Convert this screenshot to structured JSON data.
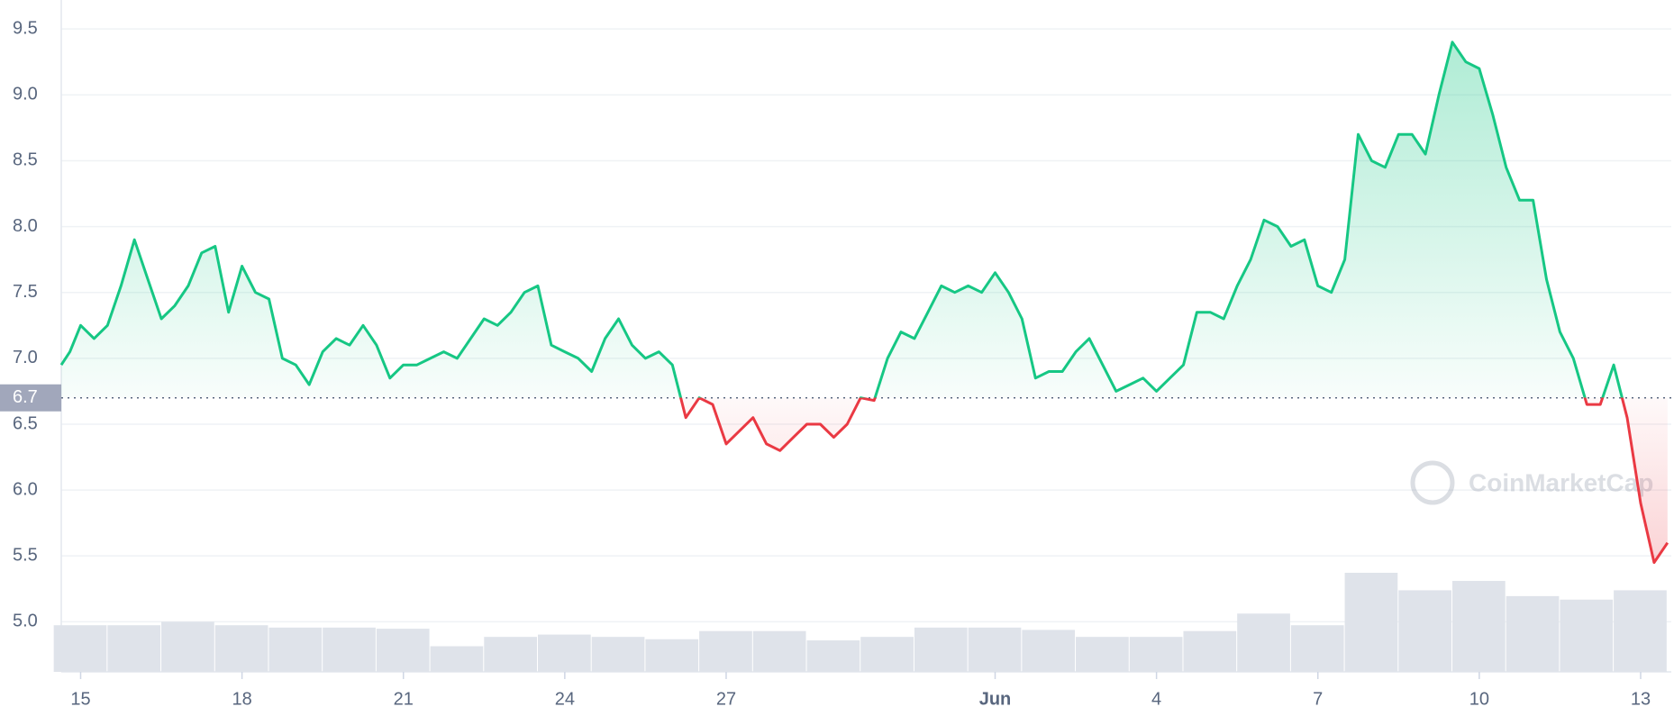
{
  "chart_data": {
    "type": "line",
    "x": [
      14.64,
      14.8,
      15,
      15.25,
      15.5,
      15.75,
      16,
      16.25,
      16.5,
      16.75,
      17,
      17.25,
      17.5,
      17.75,
      18,
      18.25,
      18.5,
      18.75,
      19,
      19.25,
      19.5,
      19.75,
      20,
      20.25,
      20.5,
      20.75,
      21,
      21.25,
      21.5,
      21.75,
      22,
      22.25,
      22.5,
      22.75,
      23,
      23.25,
      23.5,
      23.75,
      24,
      24.25,
      24.5,
      24.75,
      25,
      25.25,
      25.5,
      25.75,
      26,
      26.25,
      26.5,
      26.75,
      27,
      27.25,
      27.5,
      27.75,
      28,
      28.25,
      28.5,
      28.75,
      29,
      29.25,
      29.5,
      29.75,
      30,
      30.25,
      30.5,
      30.75,
      31,
      31.25,
      31.5,
      31.75,
      32,
      32.25,
      32.5,
      32.75,
      33,
      33.25,
      33.5,
      33.75,
      34,
      34.25,
      34.5,
      34.75,
      35,
      35.25,
      35.5,
      35.75,
      36,
      36.25,
      36.5,
      36.75,
      37,
      37.25,
      37.5,
      37.75,
      38,
      38.25,
      38.5,
      38.75,
      39,
      39.25,
      39.5,
      39.75,
      40,
      40.25,
      40.5,
      40.75,
      41,
      41.25,
      41.5,
      41.75,
      42,
      42.25,
      42.5,
      42.75,
      43,
      43.25,
      43.5,
      43.75,
      44,
      44.25,
      44.5
    ],
    "values": [
      6.95,
      7.05,
      7.25,
      7.15,
      7.25,
      7.55,
      7.9,
      7.6,
      7.3,
      7.4,
      7.55,
      7.8,
      7.85,
      7.35,
      7.7,
      7.5,
      7.45,
      7.0,
      6.95,
      6.8,
      7.05,
      7.15,
      7.1,
      7.25,
      7.1,
      6.85,
      6.95,
      6.95,
      7.0,
      7.05,
      7.0,
      7.15,
      7.3,
      7.25,
      7.35,
      7.5,
      7.55,
      7.1,
      7.05,
      7.0,
      6.9,
      7.15,
      7.3,
      7.1,
      7.0,
      7.05,
      6.95,
      6.55,
      6.7,
      6.65,
      6.35,
      6.45,
      6.55,
      6.35,
      6.3,
      6.4,
      6.5,
      6.5,
      6.4,
      6.5,
      6.7,
      6.68,
      7.0,
      7.2,
      7.15,
      7.35,
      7.55,
      7.5,
      7.55,
      7.5,
      7.65,
      7.5,
      7.3,
      6.85,
      6.9,
      6.9,
      7.05,
      7.15,
      6.95,
      6.75,
      6.8,
      6.85,
      6.75,
      6.85,
      6.95,
      7.35,
      7.35,
      7.3,
      7.55,
      7.75,
      8.05,
      8.0,
      7.85,
      7.9,
      7.55,
      7.5,
      7.75,
      8.7,
      8.5,
      8.45,
      8.7,
      8.7,
      8.55,
      9.0,
      9.4,
      9.25,
      9.2,
      8.85,
      8.45,
      8.2,
      8.2,
      7.6,
      7.2,
      7.0,
      6.65,
      6.65,
      6.95,
      6.55,
      5.9,
      5.45,
      5.6
    ],
    "baseline": 6.7,
    "up_color": "#16c784",
    "down_color": "#ea3943",
    "volume": {
      "x": [
        15,
        16,
        17,
        18,
        19,
        20,
        21,
        22,
        23,
        24,
        25,
        26,
        27,
        28,
        29,
        30,
        31,
        32,
        33,
        34,
        35,
        36,
        37,
        38,
        39,
        40,
        41,
        42,
        43,
        44
      ],
      "values": [
        40,
        40,
        43,
        40,
        38,
        38,
        37,
        22,
        30,
        32,
        30,
        28,
        35,
        35,
        27,
        30,
        38,
        38,
        36,
        30,
        30,
        35,
        50,
        40,
        85,
        70,
        78,
        65,
        62,
        70
      ],
      "color": "#dfe3ea"
    },
    "xlim": [
      14.64,
      44.57
    ],
    "ylim": [
      4.62,
      9.72
    ],
    "xticks": [
      15,
      18,
      21,
      24,
      27,
      {
        "value": 32,
        "label": "Jun"
      },
      {
        "value": 35,
        "label": "4"
      },
      {
        "value": 38,
        "label": "7"
      },
      {
        "value": 41,
        "label": "10"
      },
      {
        "value": 44,
        "label": "13"
      }
    ],
    "yticks": [
      {
        "value": 5,
        "label": "5.0"
      },
      5.5,
      {
        "value": 6,
        "label": "6.0"
      },
      6.5,
      {
        "value": 7,
        "label": "7.0"
      },
      7.5,
      {
        "value": 8,
        "label": "8.0"
      },
      8.5,
      {
        "value": 9,
        "label": "9.0"
      },
      9.5
    ],
    "grid": true,
    "watermark": "CoinMarketCap"
  }
}
